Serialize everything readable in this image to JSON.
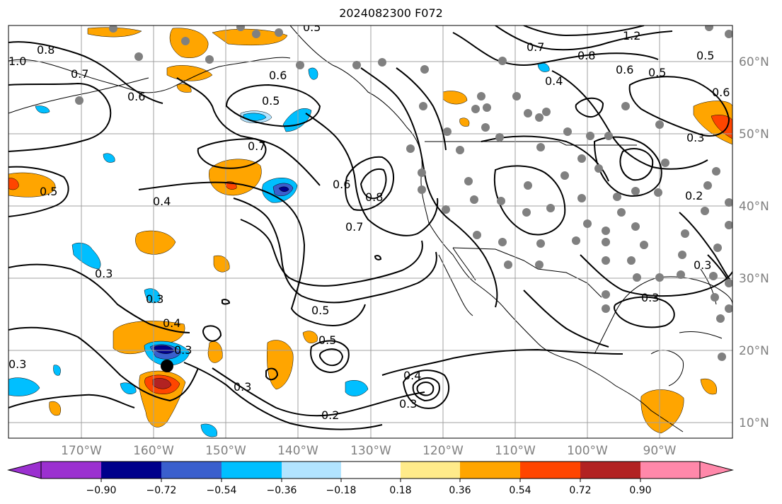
{
  "title": "2024082300 F072",
  "longitude_labels": [
    "170°W",
    "160°W",
    "150°W",
    "140°W",
    "130°W",
    "120°W",
    "110°W",
    "100°W",
    "90°W"
  ],
  "latitude_labels": [
    "60°N",
    "50°N",
    "40°N",
    "30°N",
    "20°N",
    "10°N"
  ],
  "colorbar": {
    "tick_labels": [
      "−0.90",
      "−0.72",
      "−0.54",
      "−0.36",
      "−0.18",
      "0.18",
      "0.36",
      "0.54",
      "0.72",
      "0.90"
    ],
    "colors": [
      "#9b30d0",
      "#00008b",
      "#3a5fcd",
      "#00bfff",
      "#b2e4ff",
      "#ffffff",
      "#ffeb8a",
      "#ffa500",
      "#ff4500",
      "#b22222",
      "#ff88aa"
    ]
  },
  "contour_labels": [
    "0.5",
    "0.8",
    "1.0",
    "0.7",
    "0.6",
    "0.6",
    "0.5",
    "0.7",
    "0.5",
    "0.4",
    "0.3",
    "0.3",
    "0.4",
    "0.6",
    "0.8",
    "0.7",
    "0.5",
    "0.5",
    "0.3",
    "0.2",
    "0.4",
    "0.3",
    "0.3",
    "0.3",
    "1.2",
    "0.8",
    "0.6",
    "0.5",
    "0.4",
    "0.7",
    "0.5",
    "0.6",
    "0.3",
    "0.2",
    "0.3",
    "0.3"
  ],
  "colors": {
    "grid": "#a0a0a0",
    "coast": "#000000",
    "station": "#808080",
    "storm_center": "#000000"
  }
}
